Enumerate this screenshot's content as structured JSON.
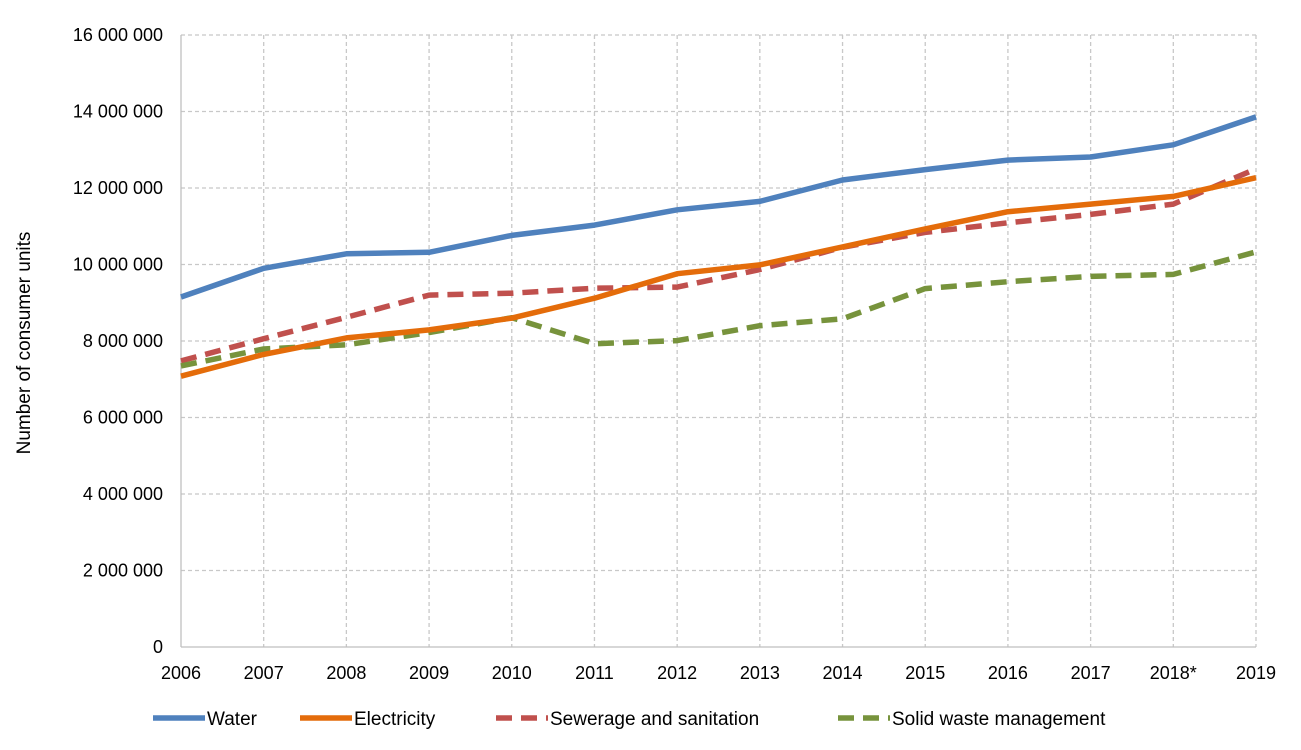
{
  "chart_data": {
    "type": "line",
    "title": "",
    "xlabel": "",
    "ylabel": "Number of consumer units",
    "ylim": [
      0,
      16000000
    ],
    "grid": true,
    "legend_position": "bottom",
    "categories": [
      "2006",
      "2007",
      "2008",
      "2009",
      "2010",
      "2011",
      "2012",
      "2013",
      "2014",
      "2015",
      "2016",
      "2017",
      "2018*",
      "2019"
    ],
    "y_ticks": [
      {
        "value": 0,
        "label": "0"
      },
      {
        "value": 2000000,
        "label": "2 000 000"
      },
      {
        "value": 4000000,
        "label": "4 000 000"
      },
      {
        "value": 6000000,
        "label": "6 000 000"
      },
      {
        "value": 8000000,
        "label": "8 000 000"
      },
      {
        "value": 10000000,
        "label": "10 000 000"
      },
      {
        "value": 12000000,
        "label": "12 000 000"
      },
      {
        "value": 14000000,
        "label": "14 000 000"
      },
      {
        "value": 16000000,
        "label": "16 000 000"
      }
    ],
    "series": [
      {
        "name": "Water",
        "color": "#4F81BD",
        "style": "solid",
        "values": [
          9150000,
          9900000,
          10280000,
          10320000,
          10760000,
          11030000,
          11430000,
          11650000,
          12210000,
          12480000,
          12730000,
          12810000,
          13130000,
          13860000
        ]
      },
      {
        "name": "Electricity",
        "color": "#E46C0A",
        "style": "solid",
        "values": [
          7080000,
          7650000,
          8080000,
          8290000,
          8600000,
          9120000,
          9760000,
          9990000,
          10460000,
          10930000,
          11380000,
          11580000,
          11780000,
          12270000
        ]
      },
      {
        "name": "Sewerage and sanitation",
        "color": "#C0504D",
        "style": "dashed",
        "values": [
          7480000,
          8060000,
          8620000,
          9200000,
          9250000,
          9380000,
          9410000,
          9870000,
          10450000,
          10840000,
          11090000,
          11310000,
          11580000,
          12500000
        ]
      },
      {
        "name": "Solid waste management",
        "color": "#77933C",
        "style": "dashed",
        "values": [
          7350000,
          7790000,
          7900000,
          8220000,
          8610000,
          7930000,
          8010000,
          8400000,
          8580000,
          9370000,
          9550000,
          9690000,
          9740000,
          10330000
        ]
      }
    ]
  }
}
